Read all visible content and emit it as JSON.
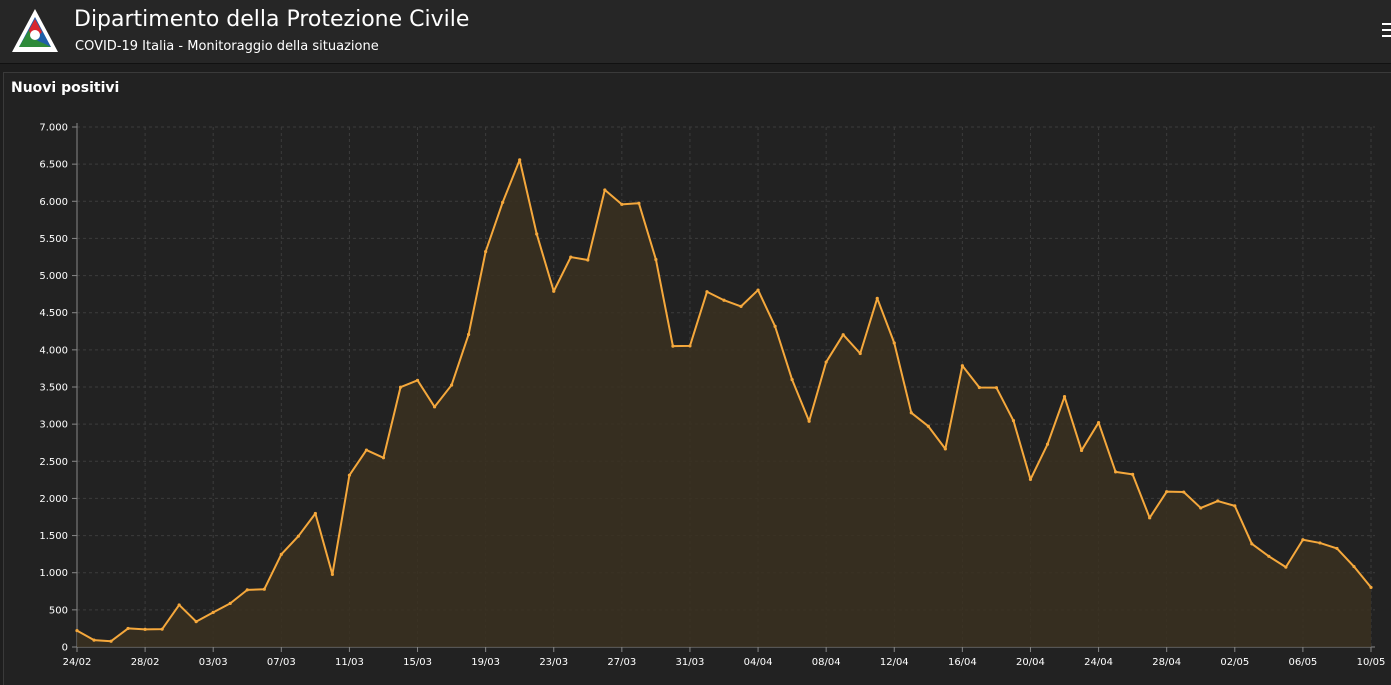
{
  "header": {
    "title": "Dipartimento della Protezione Civile",
    "subtitle": "COVID-19 Italia - Monitoraggio della situazione",
    "logo_icon": "protezione-civile-logo",
    "menu_icon": "hamburger-menu-icon"
  },
  "panel": {
    "title": "Nuovi positivi"
  },
  "colors": {
    "line": "#f5a83c",
    "area": "#3a3020",
    "background": "#1e1e1e",
    "grid": "#3c3c3c"
  },
  "chart_data": {
    "type": "area",
    "title": "Nuovi positivi",
    "xlabel": "",
    "ylabel": "",
    "ylim": [
      0,
      7000
    ],
    "yticks": [
      0,
      500,
      1000,
      1500,
      2000,
      2500,
      3000,
      3500,
      4000,
      4500,
      5000,
      5500,
      6000,
      6500,
      7000
    ],
    "ytick_labels": [
      "0",
      "500",
      "1.000",
      "1.500",
      "2.000",
      "2.500",
      "3.000",
      "3.500",
      "4.000",
      "4.500",
      "5.000",
      "5.500",
      "6.000",
      "6.500",
      "7.000"
    ],
    "xtick_labels": [
      "24/02",
      "28/02",
      "03/03",
      "07/03",
      "11/03",
      "15/03",
      "19/03",
      "23/03",
      "27/03",
      "31/03",
      "04/04",
      "08/04",
      "12/04",
      "16/04",
      "20/04",
      "24/04",
      "28/04",
      "02/05",
      "06/05",
      "10/05"
    ],
    "grid": true,
    "legend": "none",
    "x": [
      "24/02",
      "25/02",
      "26/02",
      "27/02",
      "28/02",
      "29/02",
      "01/03",
      "02/03",
      "03/03",
      "04/03",
      "05/03",
      "06/03",
      "07/03",
      "08/03",
      "09/03",
      "10/03",
      "11/03",
      "12/03",
      "13/03",
      "14/03",
      "15/03",
      "16/03",
      "17/03",
      "18/03",
      "19/03",
      "20/03",
      "21/03",
      "22/03",
      "23/03",
      "24/03",
      "25/03",
      "26/03",
      "27/03",
      "28/03",
      "29/03",
      "30/03",
      "31/03",
      "01/04",
      "02/04",
      "03/04",
      "04/04",
      "05/04",
      "06/04",
      "07/04",
      "08/04",
      "09/04",
      "10/04",
      "11/04",
      "12/04",
      "13/04",
      "14/04",
      "15/04",
      "16/04",
      "17/04",
      "18/04",
      "19/04",
      "20/04",
      "21/04",
      "22/04",
      "23/04",
      "24/04",
      "25/04",
      "26/04",
      "27/04",
      "28/04",
      "29/04",
      "30/04",
      "01/05",
      "02/05",
      "03/05",
      "04/05",
      "05/05",
      "06/05",
      "07/05",
      "08/05",
      "09/05",
      "10/05"
    ],
    "values": [
      221,
      93,
      78,
      250,
      238,
      240,
      566,
      342,
      466,
      587,
      769,
      778,
      1247,
      1492,
      1797,
      977,
      2313,
      2651,
      2547,
      3497,
      3590,
      3233,
      3526,
      4207,
      5322,
      5986,
      6557,
      5560,
      4789,
      5249,
      5210,
      6153,
      5959,
      5974,
      5217,
      4050,
      4053,
      4782,
      4668,
      4585,
      4805,
      4316,
      3599,
      3039,
      3836,
      4204,
      3951,
      4694,
      4092,
      3153,
      2972,
      2667,
      3786,
      3493,
      3491,
      3047,
      2256,
      2729,
      3370,
      2646,
      3021,
      2357,
      2324,
      1739,
      2091,
      2086,
      1872,
      1965,
      1900,
      1389,
      1221,
      1075,
      1444,
      1401,
      1327,
      1083,
      802
    ]
  }
}
